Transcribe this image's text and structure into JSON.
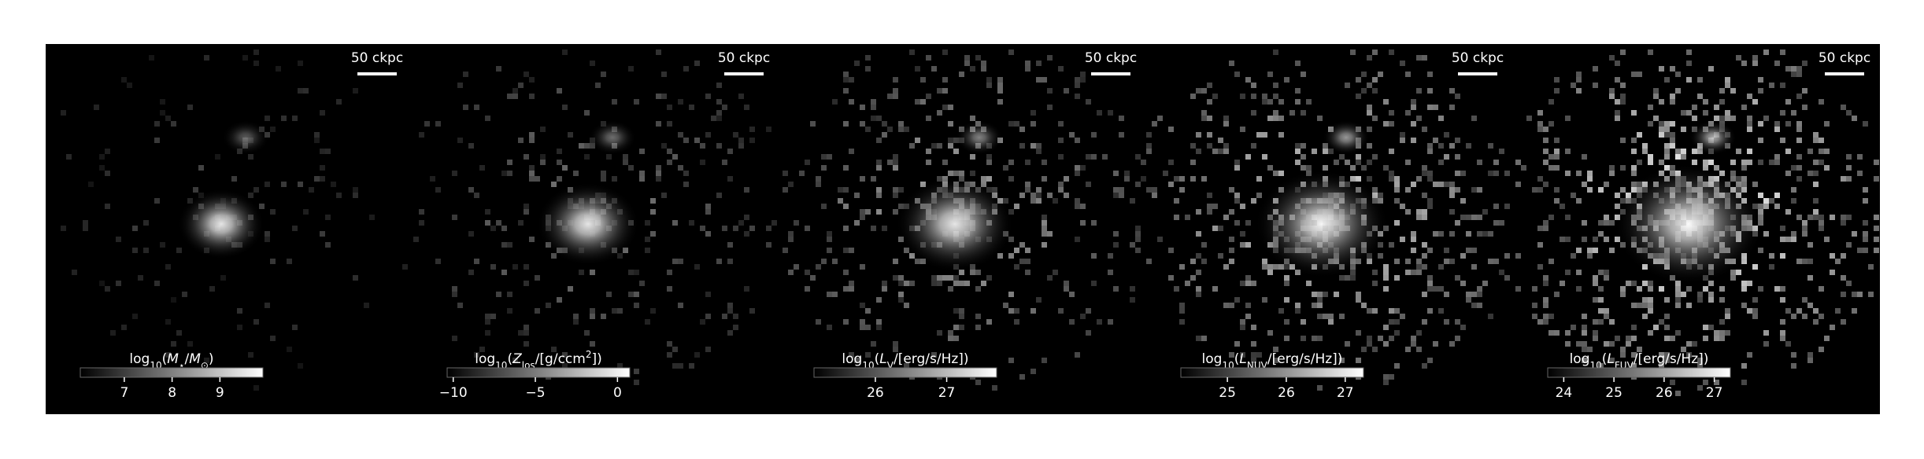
{
  "panels": [
    {
      "scale_bar": "50 ckpc",
      "colorbar": {
        "label": [
          {
            "t": "log"
          },
          {
            "t": "10",
            "sub": true
          },
          {
            "t": "("
          },
          {
            "t": "M",
            "i": true
          },
          {
            "t": "⋆",
            "sub": true
          },
          {
            "t": "/"
          },
          {
            "t": "M",
            "i": true
          },
          {
            "t": "⊙",
            "sub": true
          },
          {
            "t": ")"
          }
        ],
        "range": [
          6.08,
          9.9
        ],
        "ticks": [
          7,
          8,
          9
        ]
      }
    },
    {
      "scale_bar": "50 ckpc",
      "colorbar": {
        "label": [
          {
            "t": "log"
          },
          {
            "t": "10",
            "sub": true
          },
          {
            "t": "("
          },
          {
            "t": "Z",
            "i": true
          },
          {
            "t": "los",
            "sub": true
          },
          {
            "t": "/[g/ccm"
          },
          {
            "t": "2",
            "sup": true
          },
          {
            "t": "])"
          }
        ],
        "range": [
          -10.37,
          0.75
        ],
        "ticks": [
          {
            "value": -10,
            "label": "−10"
          },
          {
            "value": -5,
            "label": "−5"
          },
          0
        ]
      }
    },
    {
      "scale_bar": "50 ckpc",
      "colorbar": {
        "label": [
          {
            "t": "log"
          },
          {
            "t": "10",
            "sub": true
          },
          {
            "t": "("
          },
          {
            "t": "L",
            "i": true
          },
          {
            "t": "V",
            "sub": true
          },
          {
            "t": "/[erg/s/Hz])"
          }
        ],
        "range": [
          25.14,
          27.7
        ],
        "ticks": [
          26,
          27
        ]
      }
    },
    {
      "scale_bar": "50 ckpc",
      "colorbar": {
        "label": [
          {
            "t": "log"
          },
          {
            "t": "10",
            "sub": true
          },
          {
            "t": "("
          },
          {
            "t": "L",
            "i": true
          },
          {
            "t": "NUV",
            "sub": true
          },
          {
            "t": "/[erg/s/Hz])"
          }
        ],
        "range": [
          24.21,
          27.31
        ],
        "ticks": [
          25,
          26,
          27
        ]
      }
    },
    {
      "scale_bar": "50 ckpc",
      "colorbar": {
        "label": [
          {
            "t": "log"
          },
          {
            "t": "10",
            "sub": true
          },
          {
            "t": "("
          },
          {
            "t": "L",
            "i": true
          },
          {
            "t": "FUV",
            "sub": true
          },
          {
            "t": "/[erg/s/Hz])"
          }
        ],
        "range": [
          23.68,
          27.32
        ],
        "ticks": [
          24,
          25,
          26,
          27
        ]
      }
    }
  ]
}
